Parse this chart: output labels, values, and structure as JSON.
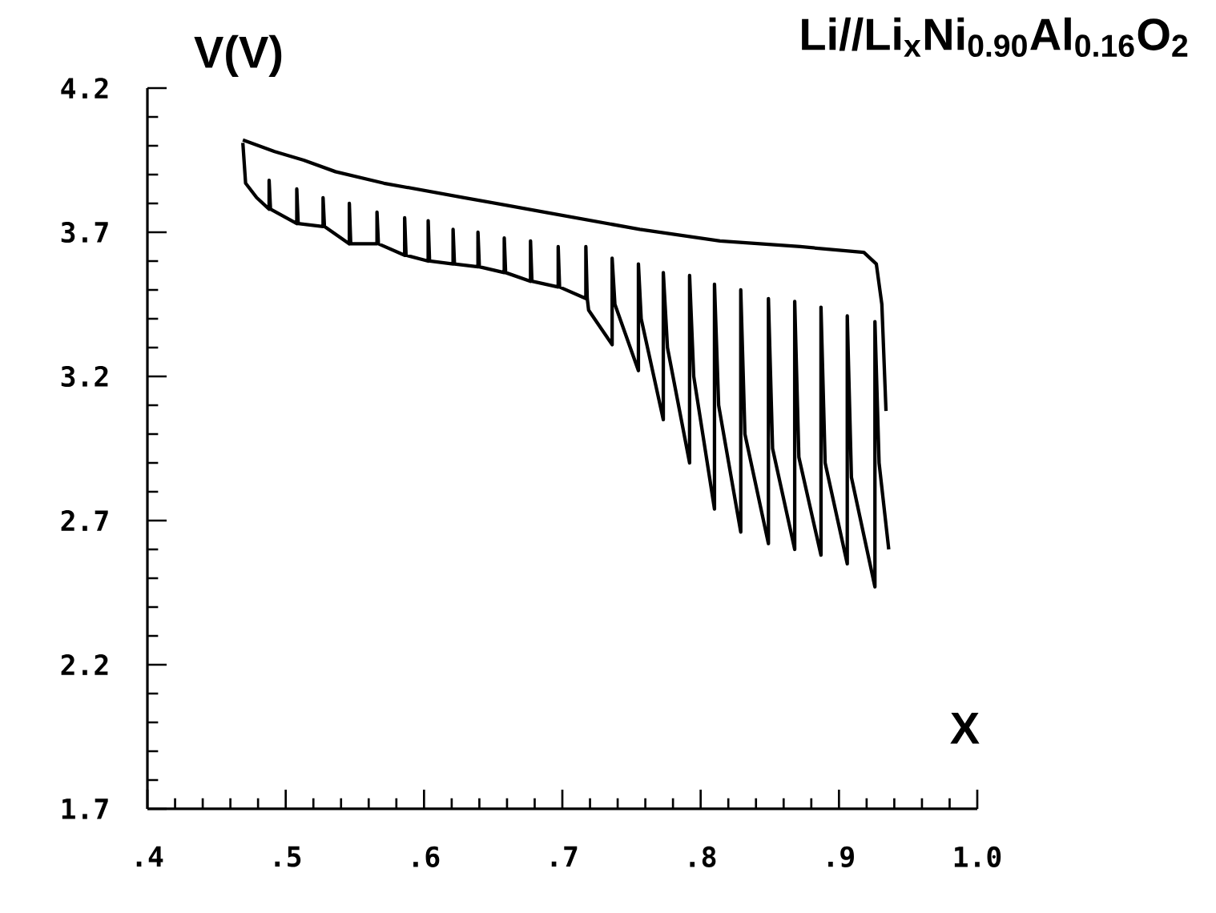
{
  "chart_data": {
    "type": "line",
    "title": "Li//Li$_{x}$Ni$_{0.90}$Al$_{0.16}$O$_{2}$",
    "xlabel": "X",
    "ylabel": "V(V)",
    "xlim": [
      0.4,
      1.0
    ],
    "ylim": [
      1.7,
      4.2
    ],
    "xticks": [
      {
        "value": 0.4,
        "label": ".4"
      },
      {
        "value": 0.5,
        "label": ".5"
      },
      {
        "value": 0.6,
        "label": ".6"
      },
      {
        "value": 0.7,
        "label": ".7"
      },
      {
        "value": 0.8,
        "label": ".8"
      },
      {
        "value": 0.9,
        "label": ".9"
      },
      {
        "value": 1.0,
        "label": "1.0"
      }
    ],
    "yticks": [
      1.7,
      2.2,
      2.7,
      3.2,
      3.7,
      4.2
    ],
    "marker": "none",
    "line_style": "solid",
    "series": [
      {
        "color": "#000000",
        "x": [
          0.469,
          0.492,
          0.513,
          0.536,
          0.571,
          0.629,
          0.687,
          0.756,
          0.814,
          0.872,
          0.918,
          0.927,
          0.931,
          0.934
        ],
        "values": [
          4.02,
          3.98,
          3.95,
          3.91,
          3.87,
          3.82,
          3.77,
          3.71,
          3.67,
          3.65,
          3.63,
          3.59,
          3.45,
          3.08
        ]
      },
      {
        "color": "#000000",
        "x": [
          0.469,
          0.471,
          0.479,
          0.488,
          0.488,
          0.489,
          0.508,
          0.508,
          0.509,
          0.527,
          0.527,
          0.528,
          0.546,
          0.546,
          0.547,
          0.566,
          0.566,
          0.567,
          0.586,
          0.586,
          0.587,
          0.603,
          0.603,
          0.604,
          0.621,
          0.621,
          0.622,
          0.639,
          0.639,
          0.64,
          0.658,
          0.658,
          0.659,
          0.677,
          0.677,
          0.678,
          0.697,
          0.697,
          0.698,
          0.717,
          0.717,
          0.718,
          0.719,
          0.736,
          0.736,
          0.738,
          0.755,
          0.755,
          0.757,
          0.773,
          0.773,
          0.776,
          0.792,
          0.792,
          0.795,
          0.81,
          0.81,
          0.813,
          0.829,
          0.829,
          0.832,
          0.849,
          0.849,
          0.852,
          0.868,
          0.868,
          0.871,
          0.887,
          0.887,
          0.89,
          0.906,
          0.906,
          0.909,
          0.926,
          0.926,
          0.929,
          0.936
        ],
        "values": [
          4.01,
          3.87,
          3.82,
          3.78,
          3.88,
          3.78,
          3.73,
          3.85,
          3.73,
          3.72,
          3.82,
          3.72,
          3.66,
          3.8,
          3.66,
          3.66,
          3.77,
          3.66,
          3.62,
          3.75,
          3.62,
          3.6,
          3.74,
          3.6,
          3.59,
          3.71,
          3.59,
          3.58,
          3.7,
          3.58,
          3.56,
          3.68,
          3.56,
          3.53,
          3.67,
          3.53,
          3.51,
          3.65,
          3.51,
          3.47,
          3.65,
          3.47,
          3.43,
          3.31,
          3.61,
          3.45,
          3.22,
          3.59,
          3.4,
          3.05,
          3.56,
          3.3,
          2.9,
          3.55,
          3.2,
          2.74,
          3.52,
          3.1,
          2.66,
          3.5,
          3.0,
          2.62,
          3.47,
          2.95,
          2.6,
          3.46,
          2.92,
          2.58,
          3.44,
          2.9,
          2.55,
          3.41,
          2.85,
          2.47,
          3.39,
          2.9,
          2.6
        ]
      }
    ]
  }
}
